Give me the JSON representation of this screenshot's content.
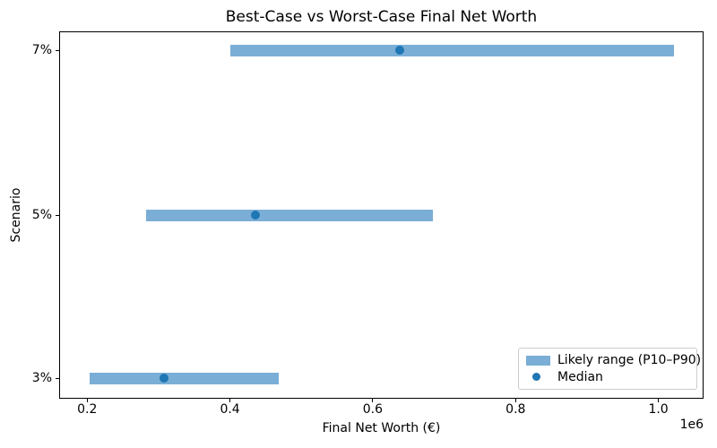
{
  "chart_data": {
    "type": "bar",
    "subtype": "horizontal_range_bars_with_median_points",
    "title": "Best-Case vs Worst-Case Final Net Worth",
    "xlabel": "Final Net Worth (€)",
    "ylabel": "Scenario",
    "x_scale_offset_label": "1e6",
    "categories": [
      "7%",
      "5%",
      "3%"
    ],
    "rows": [
      {
        "scenario": "7%",
        "p10": 400000,
        "median": 638000,
        "p90": 1022000
      },
      {
        "scenario": "5%",
        "p10": 282000,
        "median": 436000,
        "p90": 684000
      },
      {
        "scenario": "3%",
        "p10": 203000,
        "median": 308000,
        "p90": 468000
      }
    ],
    "xlim": [
      162000,
      1062000
    ],
    "xticks": [
      200000,
      400000,
      600000,
      800000,
      1000000
    ],
    "xtick_labels": [
      "0.2",
      "0.4",
      "0.6",
      "0.8",
      "1.0"
    ],
    "grid": false,
    "legend": {
      "position": "lower-right",
      "items": [
        {
          "label": "Likely range (P10–P90)",
          "marker": "patch",
          "color": "#7aaed6"
        },
        {
          "label": "Median",
          "marker": "dot",
          "color": "#1f77b4"
        }
      ]
    },
    "colors": {
      "range_bar": "#7aaed6",
      "median_dot": "#1f77b4",
      "spine": "#000000",
      "text": "#000000"
    }
  }
}
